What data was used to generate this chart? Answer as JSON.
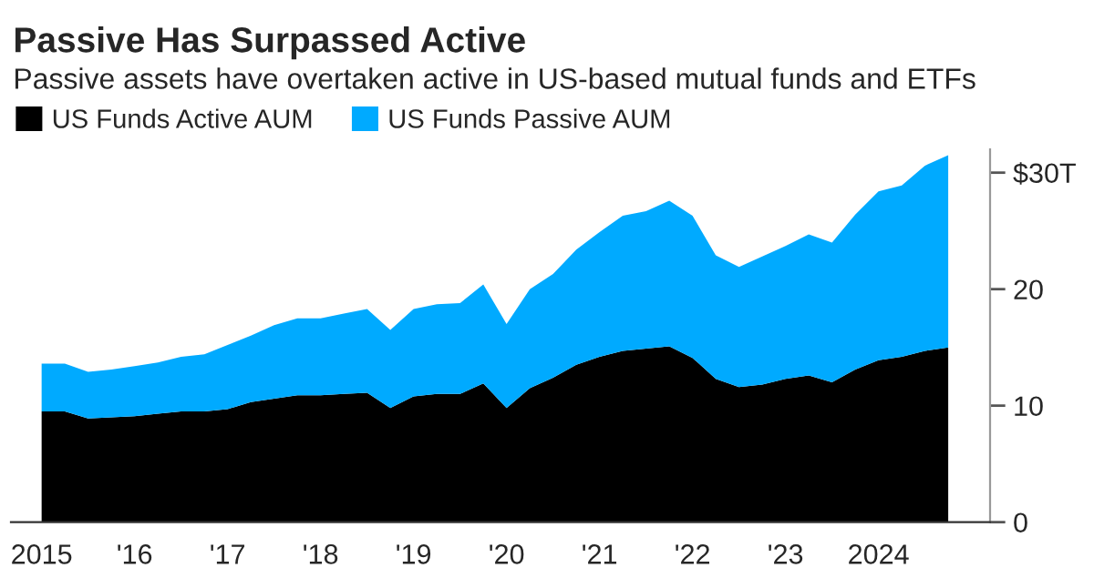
{
  "chart_data": {
    "type": "area",
    "stacked": true,
    "title": "Passive Has Surpassed Active",
    "subtitle": "Passive assets have overtaken active in US-based mutual funds and ETFs",
    "x": [
      2015,
      2015.25,
      2015.5,
      2015.75,
      2016,
      2016.25,
      2016.5,
      2016.75,
      2017,
      2017.25,
      2017.5,
      2017.75,
      2018,
      2018.25,
      2018.5,
      2018.75,
      2019,
      2019.25,
      2019.5,
      2019.75,
      2020,
      2020.25,
      2020.5,
      2020.75,
      2021,
      2021.25,
      2021.5,
      2021.75,
      2022,
      2022.25,
      2022.5,
      2022.75,
      2023,
      2023.25,
      2023.5,
      2023.75,
      2024,
      2024.25,
      2024.5,
      2024.75
    ],
    "series": [
      {
        "name": "US Funds Active AUM",
        "color": "#000000",
        "values": [
          9.5,
          9.5,
          8.9,
          9.0,
          9.1,
          9.3,
          9.5,
          9.5,
          9.7,
          10.3,
          10.6,
          10.9,
          10.9,
          11.0,
          11.1,
          9.8,
          10.8,
          11.0,
          11.0,
          11.9,
          9.8,
          11.5,
          12.4,
          13.5,
          14.2,
          14.7,
          14.9,
          15.1,
          14.1,
          12.3,
          11.6,
          11.8,
          12.3,
          12.6,
          12.0,
          13.1,
          13.9,
          14.2,
          14.7,
          15.0
        ]
      },
      {
        "name": "US Funds Passive AUM",
        "color": "#00aaff",
        "values": [
          4.1,
          4.1,
          4.0,
          4.1,
          4.3,
          4.4,
          4.7,
          4.9,
          5.5,
          5.7,
          6.3,
          6.6,
          6.6,
          6.9,
          7.2,
          6.7,
          7.5,
          7.7,
          7.8,
          8.5,
          7.2,
          8.5,
          8.9,
          9.9,
          10.7,
          11.6,
          11.8,
          12.5,
          12.2,
          10.6,
          10.3,
          11.0,
          11.4,
          12.1,
          12.0,
          13.3,
          14.5,
          14.7,
          15.9,
          16.5
        ]
      }
    ],
    "xlim": [
      2014.67,
      2025.2
    ],
    "xticks": [
      2015,
      {
        "value": 2016,
        "label": "'16"
      },
      {
        "value": 2017,
        "label": "'17"
      },
      {
        "value": 2018,
        "label": "'18"
      },
      {
        "value": 2019,
        "label": "'19"
      },
      {
        "value": 2020,
        "label": "'20"
      },
      {
        "value": 2021,
        "label": "'21"
      },
      {
        "value": 2022,
        "label": "'22"
      },
      {
        "value": 2023,
        "label": "'23"
      },
      2024
    ],
    "ylim": [
      0,
      32
    ],
    "yticks": [
      0,
      10,
      20,
      {
        "value": 30,
        "label": "$30T"
      }
    ],
    "grid": false,
    "legend": "top left"
  }
}
